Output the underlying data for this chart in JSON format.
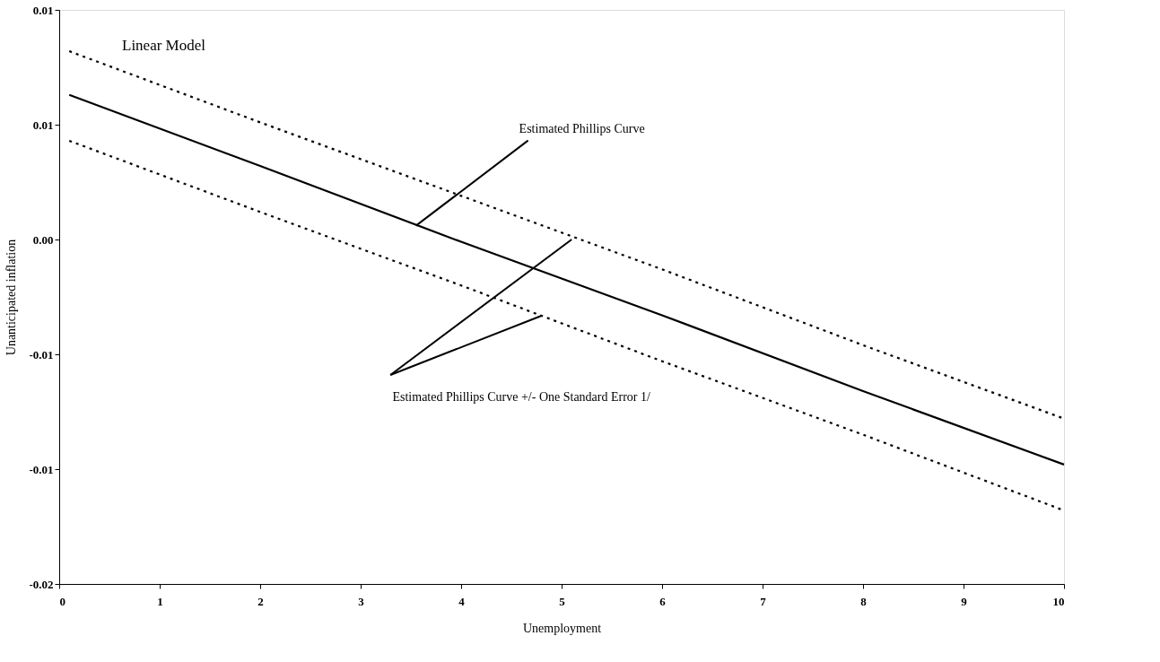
{
  "chart_data": {
    "type": "line",
    "xlabel": "Unemployment",
    "ylabel": "Unanticipated inflation",
    "xlim": [
      0,
      10
    ],
    "xticks": [
      0,
      1,
      2,
      3,
      4,
      5,
      6,
      7,
      8,
      9,
      10
    ],
    "ylim": [
      -0.015,
      0.01
    ],
    "yticks": [
      {
        "value": -0.015,
        "label": "-0.02"
      },
      {
        "value": -0.01,
        "label": "-0.01"
      },
      {
        "value": -0.005,
        "label": "-0.01"
      },
      {
        "value": 0,
        "label": "0.00"
      },
      {
        "value": 0.005,
        "label": "0.01"
      },
      {
        "value": 0.01,
        "label": "0.01"
      }
    ],
    "grid": false,
    "legend": false,
    "marker": "none",
    "series": [
      {
        "color": "#000000",
        "line_style": "dotted",
        "x": [
          0.1,
          2,
          4,
          6,
          8,
          10
        ],
        "values": [
          0.0082,
          0.0051,
          0.0019,
          -0.0013,
          -0.0046,
          -0.0078
        ]
      },
      {
        "color": "#000000",
        "line_style": "solid",
        "x": [
          0.1,
          2,
          4,
          6,
          8,
          10
        ],
        "values": [
          0.0063,
          0.0032,
          -0.0001,
          -0.0033,
          -0.0066,
          -0.0098
        ]
      },
      {
        "color": "#000000",
        "line_style": "dotted",
        "x": [
          0.1,
          2,
          4,
          6,
          8,
          10
        ],
        "values": [
          0.0043,
          0.0012,
          -0.002,
          -0.0053,
          -0.0085,
          -0.0118
        ]
      }
    ],
    "annotations": [
      "Linear Model",
      {
        "text": "Estimated Phillips Curve",
        "x": 3.55,
        "y": 0.0006
      },
      {
        "text": "Estimated Phillips Curve +/- One Standard Error 1/",
        "x": 5.1,
        "y": 0.0
      }
    ]
  }
}
